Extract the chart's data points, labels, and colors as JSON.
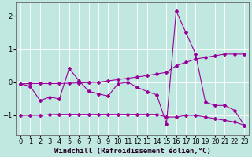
{
  "xlabel": "Windchill (Refroidissement éolien,°C)",
  "background_color": "#c0e8e0",
  "line_color": "#990099",
  "grid_color": "#ffffff",
  "x": [
    0,
    1,
    2,
    3,
    4,
    5,
    6,
    7,
    8,
    9,
    10,
    11,
    12,
    13,
    14,
    15,
    16,
    17,
    18,
    19,
    20,
    21,
    22,
    23
  ],
  "series1": [
    -0.05,
    -0.12,
    -0.55,
    -0.45,
    -0.5,
    0.42,
    0.05,
    -0.27,
    -0.35,
    -0.42,
    -0.05,
    0.0,
    -0.15,
    -0.28,
    -0.38,
    -1.25,
    2.15,
    1.5,
    0.85,
    -0.6,
    -0.7,
    -0.7,
    -0.85,
    -1.3
  ],
  "series2": [
    -0.05,
    -0.04,
    -0.04,
    -0.04,
    -0.04,
    -0.03,
    -0.02,
    -0.01,
    0.0,
    0.04,
    0.08,
    0.12,
    0.16,
    0.2,
    0.25,
    0.3,
    0.5,
    0.6,
    0.7,
    0.75,
    0.8,
    0.85,
    0.85,
    0.85
  ],
  "series3": [
    -1.0,
    -1.0,
    -1.0,
    -0.98,
    -0.97,
    -0.97,
    -0.97,
    -0.97,
    -0.97,
    -0.97,
    -0.97,
    -0.97,
    -0.97,
    -0.97,
    -0.97,
    -1.05,
    -1.05,
    -1.0,
    -1.0,
    -1.05,
    -1.1,
    -1.15,
    -1.2,
    -1.3
  ],
  "ylim": [
    -1.6,
    2.4
  ],
  "xlim": [
    -0.5,
    23.5
  ],
  "yticks": [
    -1,
    0,
    1,
    2
  ],
  "xticks": [
    0,
    1,
    2,
    3,
    4,
    5,
    6,
    7,
    8,
    9,
    10,
    11,
    12,
    13,
    14,
    15,
    16,
    17,
    18,
    19,
    20,
    21,
    22,
    23
  ],
  "xlabel_fontsize": 6.5,
  "tick_fontsize": 6,
  "marker": "D",
  "marker_size": 2.0,
  "linewidth": 0.8
}
